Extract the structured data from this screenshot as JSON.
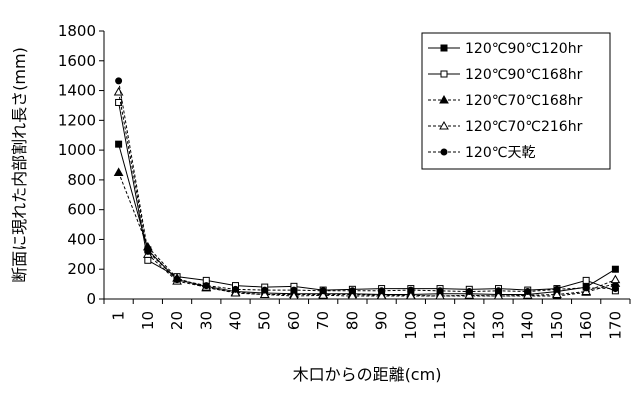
{
  "chart_data": {
    "type": "line",
    "xlabel": "木口からの距離(cm)",
    "ylabel": "断面に現れた内部割れ長さ(mm)",
    "ylim": [
      0,
      1800
    ],
    "yticks": [
      0,
      200,
      400,
      600,
      800,
      1000,
      1200,
      1400,
      1600,
      1800
    ],
    "categories": [
      "1",
      "10",
      "20",
      "30",
      "40",
      "50",
      "60",
      "70",
      "80",
      "90",
      "100",
      "110",
      "120",
      "130",
      "140",
      "150",
      "160",
      "170"
    ],
    "grid": false,
    "legend_position": "top-right",
    "series": [
      {
        "name": "120℃90℃120hr",
        "line": "solid",
        "marker": "square-filled",
        "values": [
          1040,
          330,
          130,
          85,
          50,
          40,
          35,
          35,
          35,
          30,
          30,
          35,
          35,
          30,
          30,
          50,
          80,
          200
        ]
      },
      {
        "name": "120℃90℃168hr",
        "line": "solid",
        "marker": "square-open",
        "values": [
          1320,
          260,
          150,
          125,
          90,
          80,
          85,
          60,
          65,
          70,
          70,
          70,
          65,
          70,
          60,
          70,
          125,
          55
        ]
      },
      {
        "name": "120℃70℃168hr",
        "line": "dashed",
        "marker": "triangle-filled",
        "values": [
          850,
          350,
          140,
          75,
          45,
          30,
          30,
          30,
          30,
          25,
          25,
          20,
          20,
          20,
          20,
          20,
          45,
          105
        ]
      },
      {
        "name": "120℃70℃216hr",
        "line": "dashed",
        "marker": "triangle-open",
        "values": [
          1390,
          300,
          120,
          80,
          40,
          30,
          20,
          25,
          20,
          20,
          20,
          20,
          25,
          20,
          25,
          30,
          50,
          130
        ]
      },
      {
        "name": "120℃天乾",
        "line": "dashed",
        "marker": "circle-filled",
        "values": [
          1465,
          320,
          130,
          90,
          65,
          60,
          60,
          55,
          55,
          55,
          60,
          55,
          50,
          55,
          50,
          65,
          75,
          70
        ]
      }
    ]
  }
}
